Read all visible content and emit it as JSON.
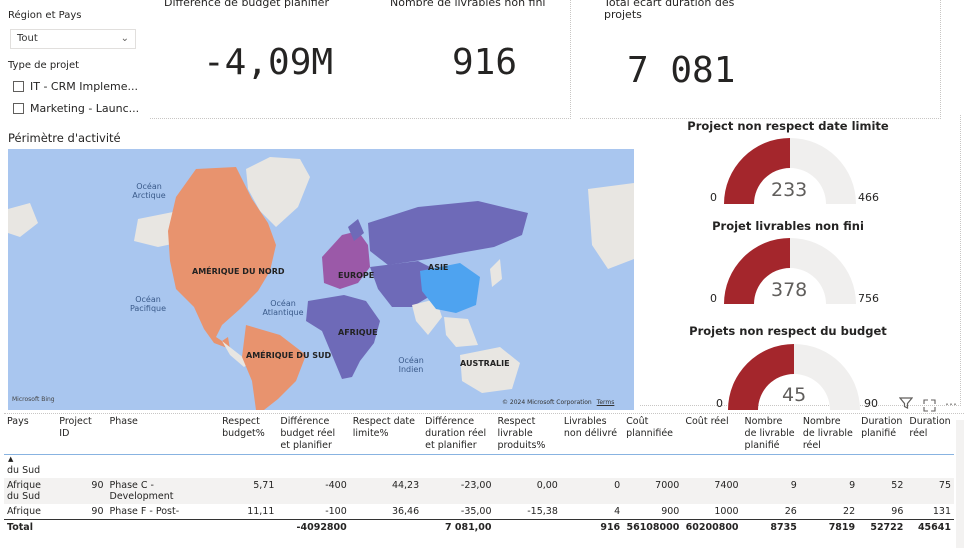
{
  "slicers": {
    "region_title": "Région et Pays",
    "region_value": "Tout",
    "type_title": "Type de projet",
    "type_options": [
      "IT - CRM Impleme...",
      "Marketing - Launc..."
    ]
  },
  "kpis": [
    {
      "title": "Différence de budget planifier",
      "value": "-4,09M"
    },
    {
      "title": "Nombre de livrables non fini",
      "value": "916"
    },
    {
      "title": "Total écart duration des projets",
      "value": "7 081"
    }
  ],
  "map": {
    "title": "Périmètre d'activité",
    "ocean_labels": [
      "Océan Arctique",
      "Océan Pacifique",
      "Océan Atlantique",
      "Océan Indien"
    ],
    "continent_labels": [
      "AMÉRIQUE DU NORD",
      "EUROPE",
      "ASIE",
      "AFRIQUE",
      "AMÉRIQUE DU SUD",
      "AUSTRALIE"
    ],
    "brand": "Microsoft Bing",
    "copyright": "© 2024 Microsoft Corporation",
    "terms": "Terms"
  },
  "gauges": [
    {
      "title": "Project non respect date limite",
      "min": "0",
      "max": "466",
      "value": "233",
      "fraction": 0.5
    },
    {
      "title": "Projet livrables non fini",
      "min": "0",
      "max": "756",
      "value": "378",
      "fraction": 0.5
    },
    {
      "title": "Projets non respect du budget",
      "min": "0",
      "max": "90",
      "value": "45",
      "fraction": 0.5
    }
  ],
  "colors": {
    "gauge_fill": "#a4262c",
    "gauge_bg": "#f0efee",
    "ocean": "#a9c6ef",
    "land": "#e8e6e2",
    "north_america": "#e8936e",
    "south_america": "#e8936e",
    "russia": "#6e6ab8",
    "china": "#4ea3f0",
    "europe": "#9b59a8"
  },
  "table": {
    "headers": [
      "Pays",
      "Project ID",
      "Phase",
      "Respect budget%",
      "Différence budget réel et planifier",
      "Respect date limite%",
      "Différence duration réel et planifier",
      "Respect livrable produits%",
      "Livrables non délivré",
      "Coût plannifiée",
      "Coût réel",
      "Nombre de livrable planifié",
      "Nombre de livrable réel",
      "Duration planifié",
      "Duration réel"
    ],
    "partial_row": "du Sud",
    "rows": [
      [
        "Afrique du Sud",
        "90",
        "Phase C - Development",
        "5,71",
        "-400",
        "44,23",
        "-23,00",
        "0,00",
        "0",
        "7000",
        "7400",
        "9",
        "9",
        "52",
        "75"
      ],
      [
        "Afrique",
        "90",
        "Phase F - Post-",
        "11,11",
        "-100",
        "36,46",
        "-35,00",
        "-15,38",
        "4",
        "900",
        "1000",
        "26",
        "22",
        "96",
        "131"
      ]
    ],
    "total": [
      "Total",
      "",
      "",
      "",
      "-4092800",
      "",
      "7 081,00",
      "",
      "916",
      "56108000",
      "60200800",
      "8735",
      "7819",
      "52722",
      "45641"
    ]
  }
}
